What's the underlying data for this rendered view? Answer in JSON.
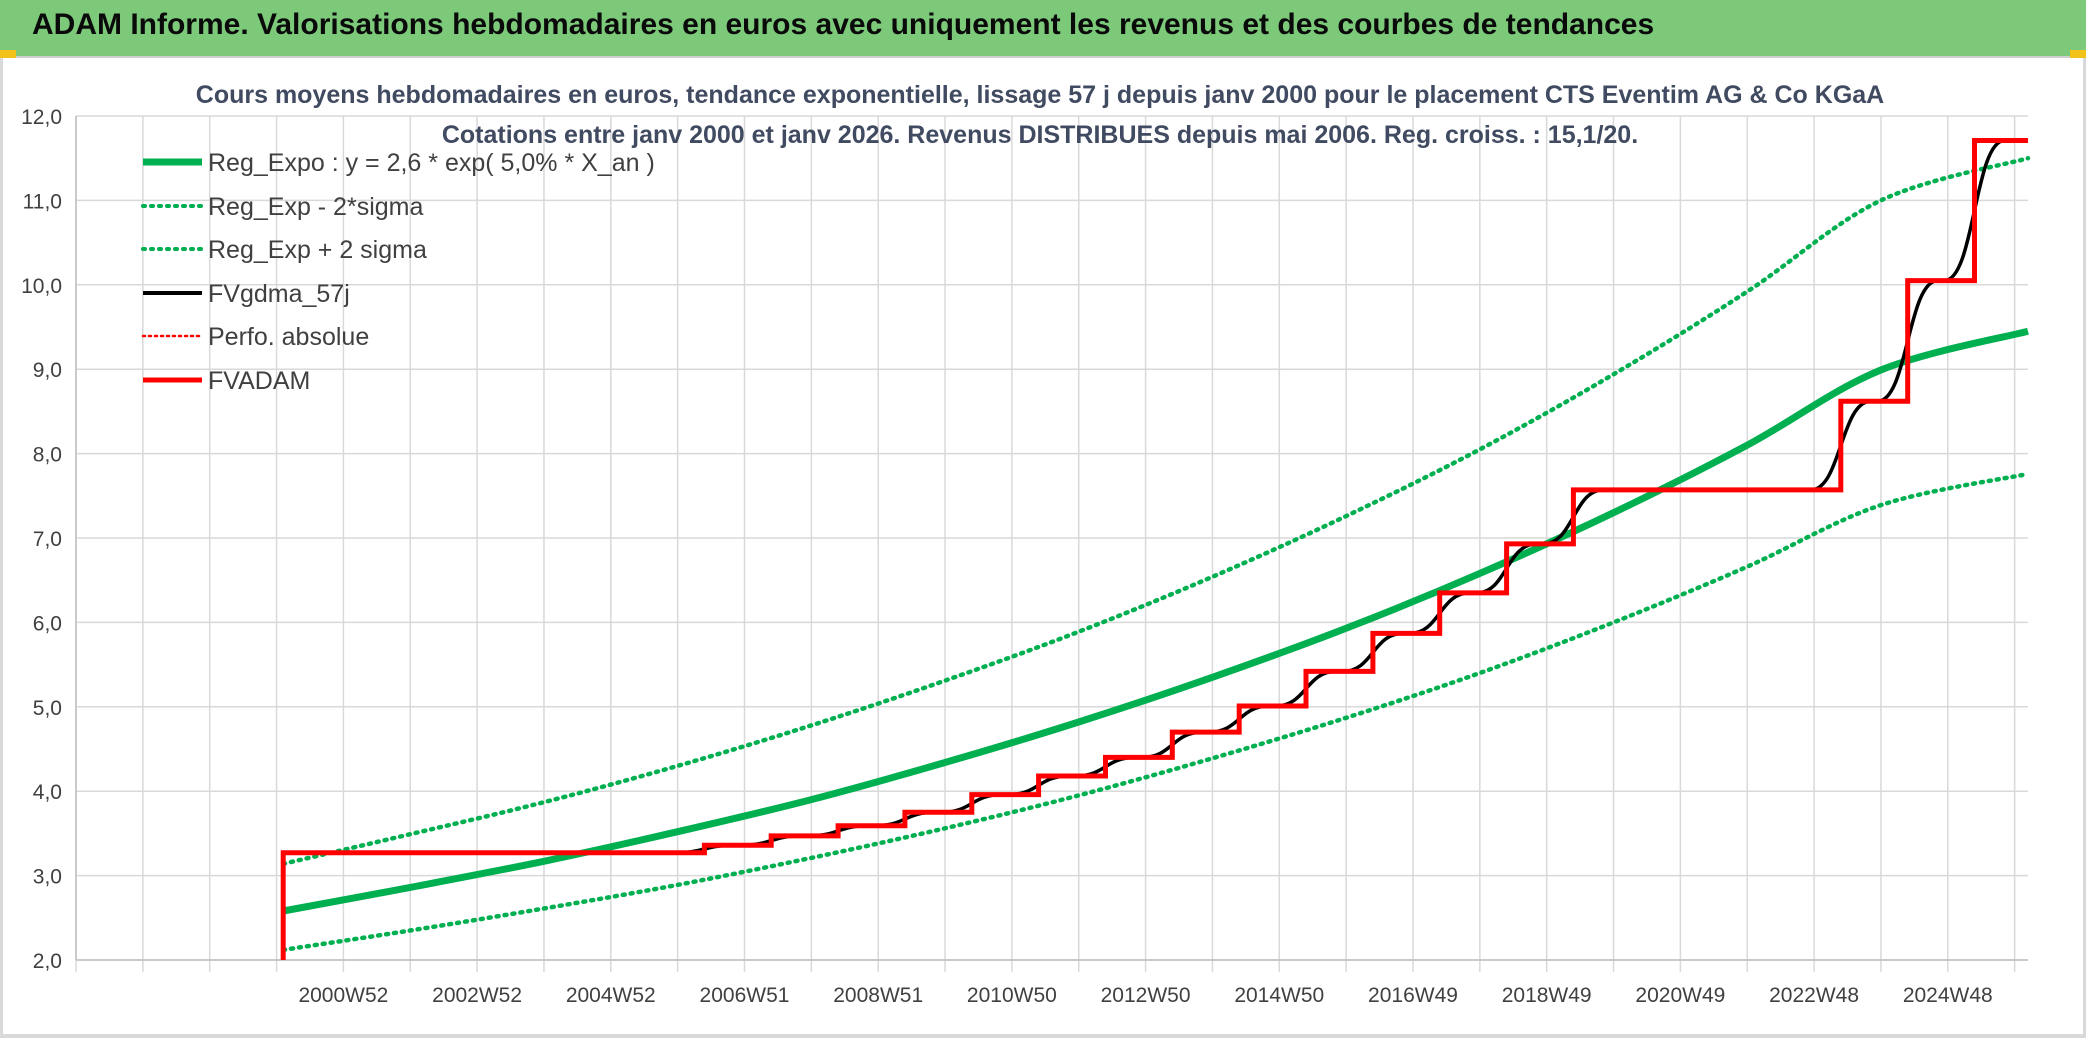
{
  "banner": {
    "title": "ADAM Informe. Valorisations hebdomadaires en euros avec uniquement les revenus et des courbes de tendances"
  },
  "chart_data": {
    "type": "line",
    "title": "Cours moyens hebdomadaires en euros, tendance exponentielle, lissage 57 j depuis janv 2000 pour le placement CTS Eventim AG & Co KGaA",
    "subtitle": "Cotations entre janv 2000 et janv 2026. Revenus DISTRIBUES depuis mai 2006. Reg. croiss. : 15,1/20.",
    "xlabel": "",
    "ylabel": "",
    "ylim": [
      2.0,
      12.0
    ],
    "xlim": [
      1997.0,
      2026.2
    ],
    "yticks": [
      "2,0",
      "3,0",
      "4,0",
      "5,0",
      "6,0",
      "7,0",
      "8,0",
      "9,0",
      "10,0",
      "11,0",
      "12,0"
    ],
    "xticks": [
      {
        "x": 2001,
        "label": "2000W52"
      },
      {
        "x": 2003,
        "label": "2002W52"
      },
      {
        "x": 2005,
        "label": "2004W52"
      },
      {
        "x": 2007,
        "label": "2006W51"
      },
      {
        "x": 2009,
        "label": "2008W51"
      },
      {
        "x": 2011,
        "label": "2010W50"
      },
      {
        "x": 2013,
        "label": "2012W50"
      },
      {
        "x": 2015,
        "label": "2014W50"
      },
      {
        "x": 2017,
        "label": "2016W49"
      },
      {
        "x": 2019,
        "label": "2018W49"
      },
      {
        "x": 2021,
        "label": "2020W49"
      },
      {
        "x": 2023,
        "label": "2022W48"
      },
      {
        "x": 2025,
        "label": "2024W48"
      }
    ],
    "grid": true,
    "legend_position": "top-left",
    "colors": {
      "reg": "#00b050",
      "smooth": "#000000",
      "perfo": "#ff0000",
      "adam": "#ff0000"
    },
    "series": [
      {
        "name": "Reg_Expo : y = 2,6 * exp( 5,0% *  X_an )",
        "style": "solid-thick",
        "x": [
          2000.1,
          2002,
          2004,
          2006,
          2008,
          2010,
          2012,
          2014,
          2016,
          2018,
          2020,
          2022,
          2024,
          2026.2
        ],
        "y": [
          2.58,
          2.86,
          3.17,
          3.52,
          3.9,
          4.34,
          4.82,
          5.35,
          5.93,
          6.58,
          7.3,
          8.1,
          8.99,
          9.45
        ]
      },
      {
        "name": "Reg_Exp - 2*sigma",
        "style": "dotted",
        "x": [
          2000.1,
          2002,
          2004,
          2006,
          2008,
          2010,
          2012,
          2014,
          2016,
          2018,
          2020,
          2022,
          2024,
          2026.2
        ],
        "y": [
          2.12,
          2.35,
          2.61,
          2.89,
          3.21,
          3.56,
          3.95,
          4.39,
          4.87,
          5.4,
          6.0,
          6.66,
          7.39,
          7.76
        ]
      },
      {
        "name": "Reg_Exp + 2 sigma",
        "style": "dotted",
        "x": [
          2000.1,
          2002,
          2004,
          2006,
          2008,
          2010,
          2012,
          2014,
          2016,
          2018,
          2020,
          2022,
          2024,
          2026.2
        ],
        "y": [
          3.14,
          3.49,
          3.87,
          4.3,
          4.78,
          5.31,
          5.89,
          6.54,
          7.26,
          8.05,
          8.94,
          9.92,
          11.0,
          11.5
        ]
      },
      {
        "name": "FVgdma_57j",
        "style": "solid-smooth"
      },
      {
        "name": "Perfo. absolue",
        "style": "dotted-red"
      },
      {
        "name": "FVADAM",
        "style": "step",
        "start": {
          "x": 2000.1,
          "y": 2.0
        },
        "steps": [
          {
            "x": 2000.1,
            "y": 3.27
          },
          {
            "x": 2006.4,
            "y": 3.36
          },
          {
            "x": 2007.4,
            "y": 3.47
          },
          {
            "x": 2008.4,
            "y": 3.59
          },
          {
            "x": 2009.4,
            "y": 3.75
          },
          {
            "x": 2010.4,
            "y": 3.96
          },
          {
            "x": 2011.4,
            "y": 4.18
          },
          {
            "x": 2012.4,
            "y": 4.4
          },
          {
            "x": 2013.4,
            "y": 4.7
          },
          {
            "x": 2014.4,
            "y": 5.01
          },
          {
            "x": 2015.4,
            "y": 5.42
          },
          {
            "x": 2016.4,
            "y": 5.87
          },
          {
            "x": 2017.4,
            "y": 6.35
          },
          {
            "x": 2018.4,
            "y": 6.93
          },
          {
            "x": 2019.4,
            "y": 7.57
          },
          {
            "x": 2023.4,
            "y": 8.62
          },
          {
            "x": 2024.4,
            "y": 10.05
          },
          {
            "x": 2025.4,
            "y": 11.71
          }
        ],
        "end_x": 2026.2
      }
    ]
  }
}
